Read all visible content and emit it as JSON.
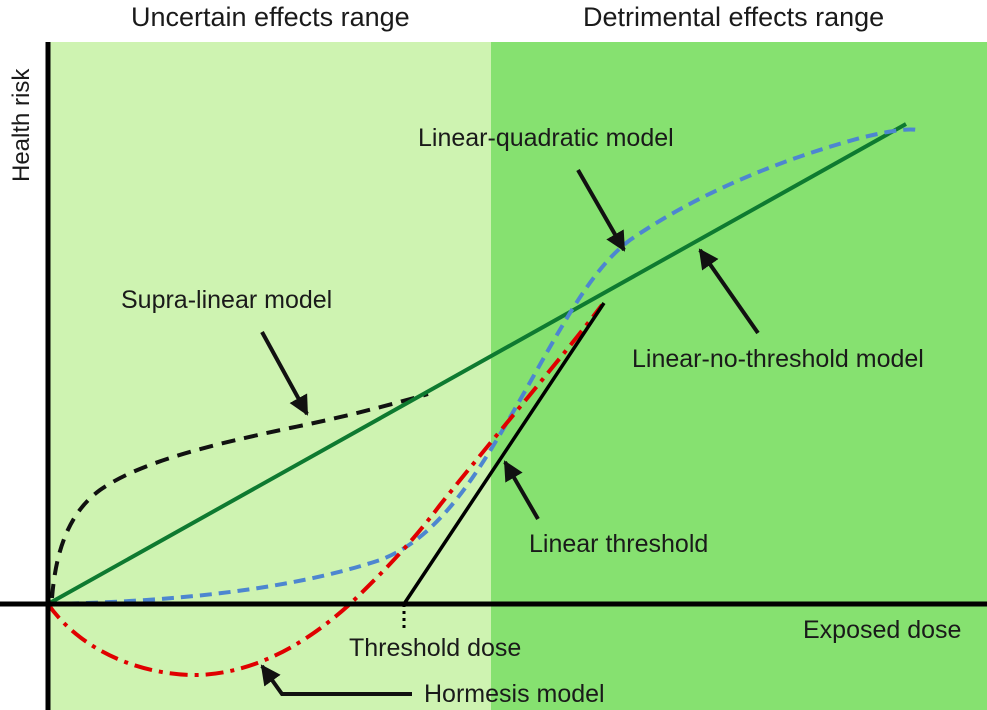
{
  "header": {
    "left_range": "Uncertain effects range",
    "right_range": "Detrimental effects range"
  },
  "axes": {
    "ylabel": "Health risk",
    "xlabel": "Exposed dose"
  },
  "models": {
    "linear_quadratic": "Linear-quadratic model",
    "supra_linear": "Supra-linear model",
    "linear_no_threshold": "Linear-no-threshold model",
    "linear_threshold": "Linear threshold",
    "threshold_dose": "Threshold dose",
    "hormesis": "Hormesis model"
  },
  "colors": {
    "uncertain_region": "#cef3b1",
    "detrimental_region": "#86e170",
    "axis": "#000000",
    "lnt_line": "#0e7a30",
    "linear_quadratic": "#4d86d0",
    "supra_linear": "#111111",
    "hormesis": "#e00000",
    "linear_threshold": "#000000"
  }
}
